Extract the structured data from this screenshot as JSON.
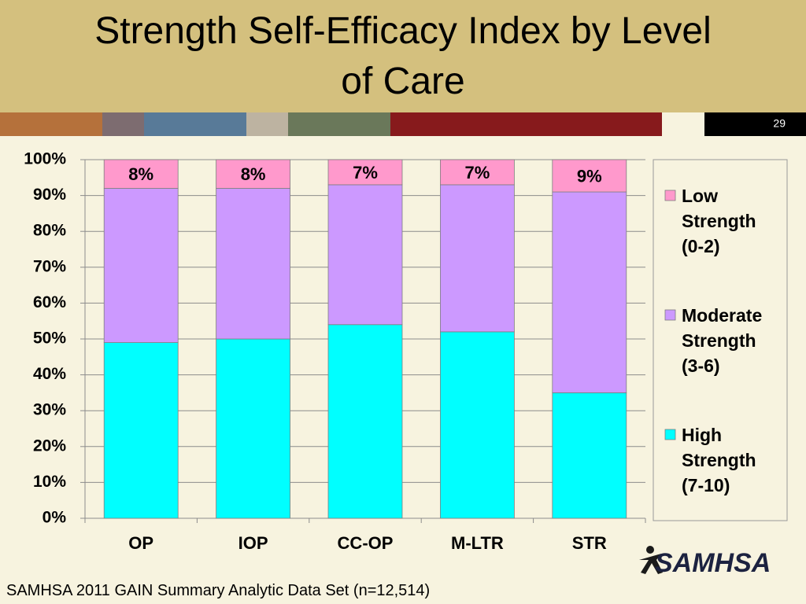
{
  "slide_number": "29",
  "footer": "SAMHSA 2011 GAIN Summary Analytic Data Set (n=12,514)",
  "logo_text": "SAMHSA",
  "chart_data": {
    "type": "stacked_bar",
    "title": "Strength Self-Efficacy Index by Level of Care",
    "categories": [
      "OP",
      "IOP",
      "CC-OP",
      "M-LTR",
      "STR"
    ],
    "series": [
      {
        "name": "High Strength (7-10)",
        "color": "#00ffff",
        "values": [
          49,
          50,
          54,
          52,
          35
        ]
      },
      {
        "name": "Moderate Strength (3-6)",
        "color": "#cc99ff",
        "values": [
          43,
          42,
          39,
          41,
          56
        ]
      },
      {
        "name": "Low Strength (0-2)",
        "color": "#ff99cc",
        "values": [
          8,
          8,
          7,
          7,
          9
        ],
        "value_labels": [
          "8%",
          "8%",
          "7%",
          "7%",
          "9%"
        ]
      }
    ],
    "ylim": [
      0,
      100
    ],
    "yticks": [
      {
        "value": 0,
        "label": "0%"
      },
      {
        "value": 10,
        "label": "10%"
      },
      {
        "value": 20,
        "label": "20%"
      },
      {
        "value": 30,
        "label": "30%"
      },
      {
        "value": 40,
        "label": "40%"
      },
      {
        "value": 50,
        "label": "50%"
      },
      {
        "value": 60,
        "label": "60%"
      },
      {
        "value": 70,
        "label": "70%"
      },
      {
        "value": 80,
        "label": "80%"
      },
      {
        "value": 90,
        "label": "90%"
      },
      {
        "value": 100,
        "label": "100%"
      }
    ],
    "grid": true,
    "legend": "right"
  }
}
